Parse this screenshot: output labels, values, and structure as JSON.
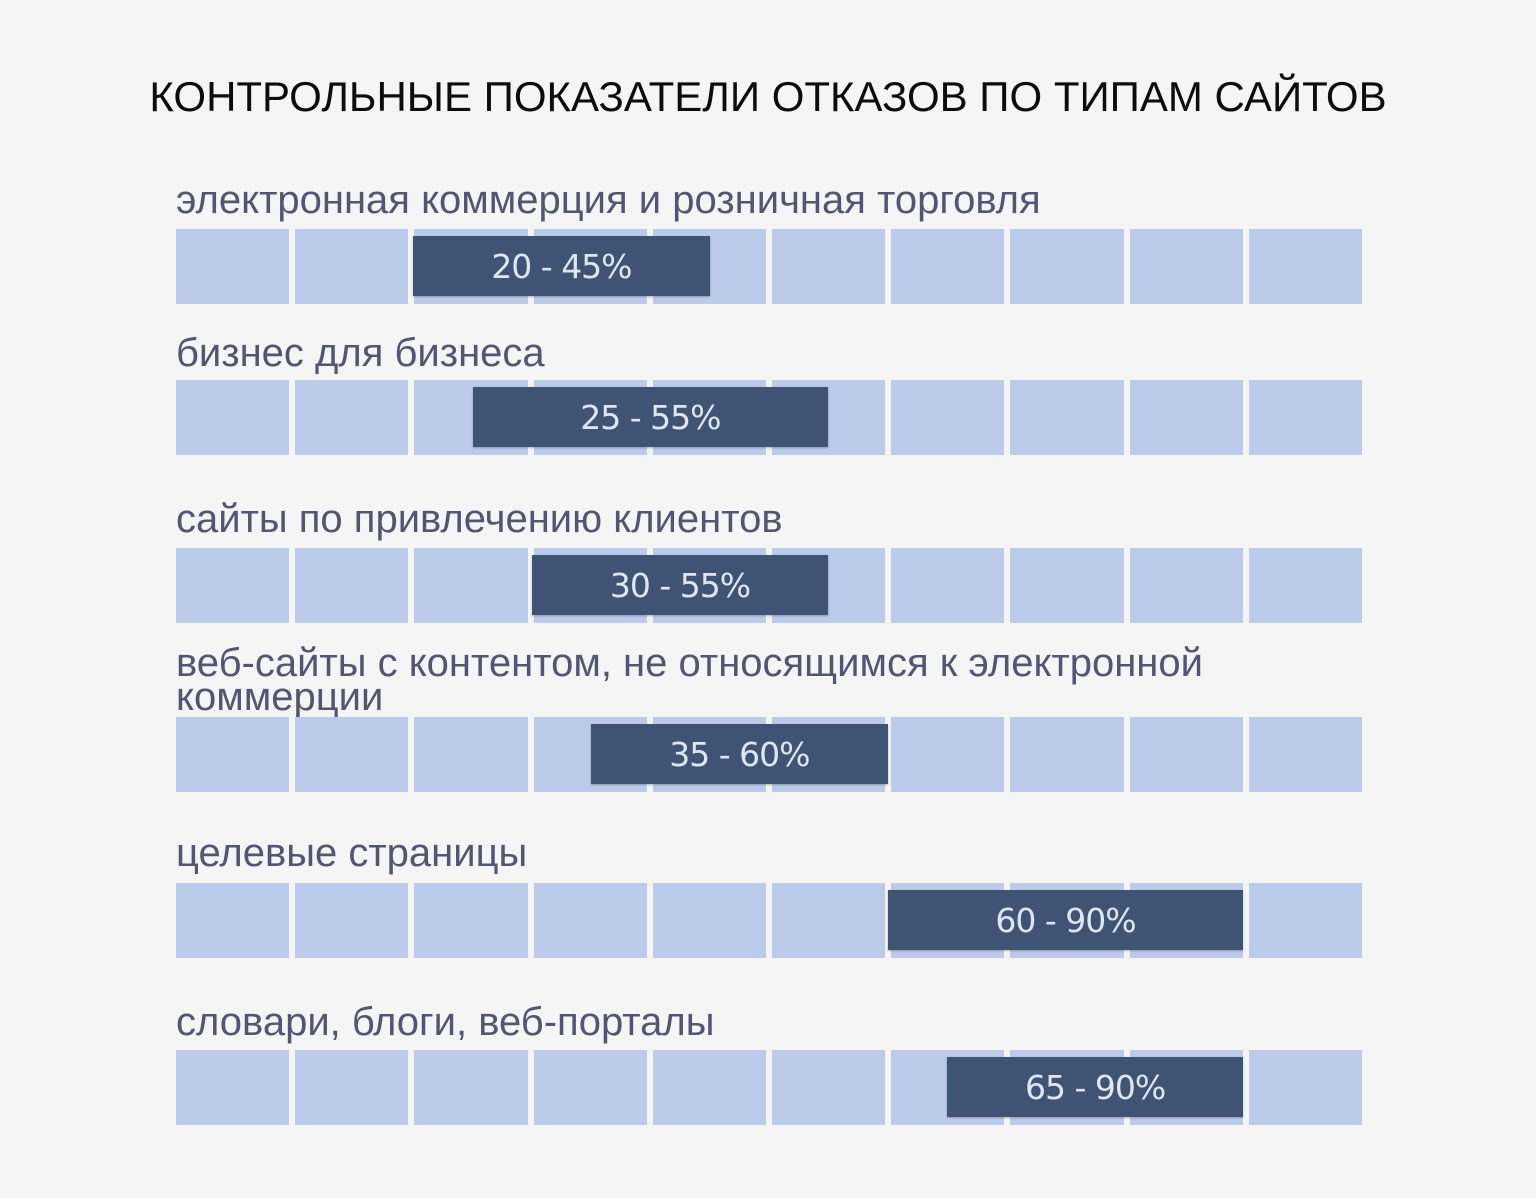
{
  "chart_data": {
    "type": "bar",
    "title": "КОНТРОЛЬНЫЕ ПОКАЗАТЕЛИ ОТКАЗОВ ПО ТИПАМ САЙТОВ",
    "xlim": [
      0,
      100
    ],
    "grid_cells": 10,
    "series": [
      {
        "name": "электронная коммерция и розничная торговля",
        "low": 20,
        "high": 45,
        "label": "20 - 45%"
      },
      {
        "name": "бизнес для бизнеса",
        "low": 25,
        "high": 55,
        "label": "25 - 55%"
      },
      {
        "name": "сайты по привлечению клиентов",
        "low": 30,
        "high": 55,
        "label": "30 - 55%"
      },
      {
        "name": "веб-сайты с контентом, не относящимся к электронной коммерции",
        "low": 35,
        "high": 60,
        "label": "35 - 60%"
      },
      {
        "name": "целевые страницы",
        "low": 60,
        "high": 90,
        "label": "60 - 90%"
      },
      {
        "name": "словари, блоги, веб-порталы",
        "low": 65,
        "high": 90,
        "label": "65 - 90%"
      }
    ]
  },
  "colors": {
    "background": "#f5f5f6",
    "cell": "#bccbea",
    "bar": "#3f5375",
    "bar_text": "#dfe6f3",
    "label": "#535672",
    "title": "#0c0c0c"
  }
}
